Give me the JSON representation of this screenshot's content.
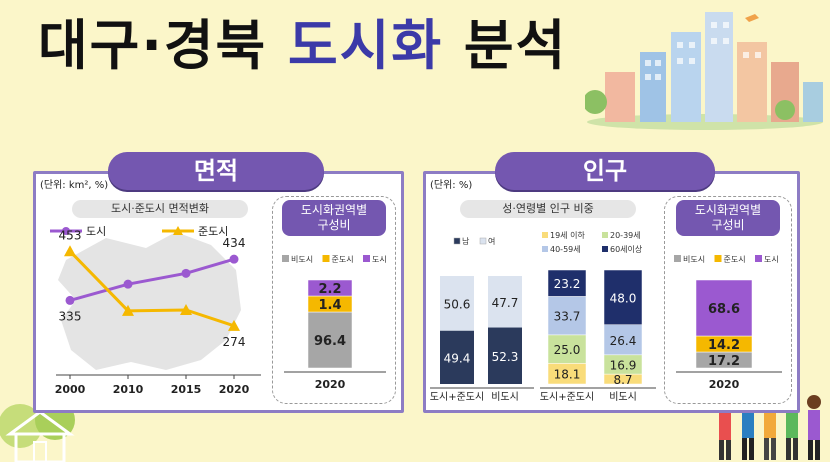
{
  "title": {
    "part1": "대구·경북",
    "part2": "도시화",
    "part3": "분석"
  },
  "area": {
    "pill_label": "면적",
    "unit": "(단위: km², %)",
    "subtitle": "도시·준도시 면적변화",
    "card_title_line1": "도시화권역별",
    "card_title_line2": "구성비"
  },
  "population": {
    "pill_label": "인구",
    "unit": "(단위: %)",
    "subtitle": "성·연령별 인구 비중",
    "card_title_line1": "도시화권역별",
    "card_title_line2": "구성비"
  },
  "colors": {
    "purple": "#9b59d0",
    "yellow": "#f5b800",
    "gray": "#a6a6a6",
    "navy": "#2b3a5c",
    "lightblue": "#dbe3ef",
    "yellow_light": "#f9dc7a",
    "green_light": "#c9e29c",
    "blue_mid": "#b4c7e7",
    "navy_dark": "#1f2f6b"
  },
  "chart_data": [
    {
      "type": "line",
      "x": [
        "2000",
        "2010",
        "2015",
        "2020"
      ],
      "series": [
        {
          "name": "도시",
          "values": [
            335,
            374,
            400,
            434
          ]
        },
        {
          "name": "준도시",
          "values": [
            453,
            310,
            312,
            274
          ]
        }
      ],
      "data_labels": {
        "도시": {
          "2000": "335",
          "2020": "434"
        },
        "준도시": {
          "2000": "453",
          "2020": "274"
        }
      }
    },
    {
      "type": "bar",
      "stacked": true,
      "categories": [
        "2020"
      ],
      "series": [
        {
          "name": "비도시",
          "values": [
            96.4
          ]
        },
        {
          "name": "준도시",
          "values": [
            1.4
          ]
        },
        {
          "name": "도시",
          "values": [
            2.2
          ]
        }
      ]
    },
    {
      "type": "bar",
      "stacked": true,
      "categories": [
        "도시+준도시",
        "비도시"
      ],
      "series": [
        {
          "name": "남",
          "values": [
            49.4,
            52.3
          ]
        },
        {
          "name": "여",
          "values": [
            50.6,
            47.7
          ]
        }
      ]
    },
    {
      "type": "bar",
      "stacked": true,
      "categories": [
        "도시+준도시",
        "비도시"
      ],
      "series": [
        {
          "name": "19세 이하",
          "values": [
            18.1,
            8.7
          ]
        },
        {
          "name": "20-39세",
          "values": [
            25.0,
            16.9
          ]
        },
        {
          "name": "40-59세",
          "values": [
            33.7,
            26.4
          ]
        },
        {
          "name": "60세이상",
          "values": [
            23.2,
            48.0
          ]
        }
      ]
    },
    {
      "type": "bar",
      "stacked": true,
      "categories": [
        "2020"
      ],
      "series": [
        {
          "name": "비도시",
          "values": [
            17.2
          ]
        },
        {
          "name": "준도시",
          "values": [
            14.2
          ]
        },
        {
          "name": "도시",
          "values": [
            68.6
          ]
        }
      ]
    }
  ]
}
